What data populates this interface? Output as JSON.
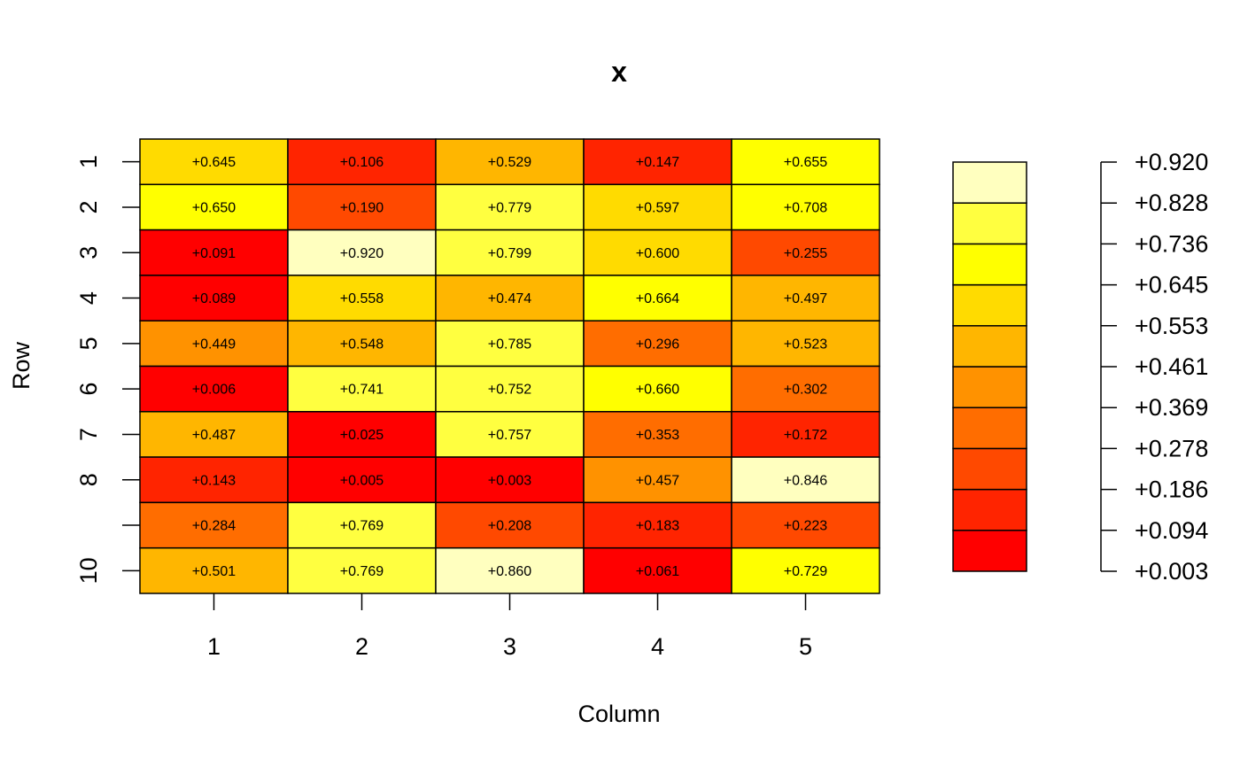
{
  "chart_data": {
    "type": "heatmap",
    "title": "x",
    "xlabel": "Column",
    "ylabel": "Row",
    "x_tick_labels": [
      "1",
      "2",
      "3",
      "4",
      "5"
    ],
    "y_tick_labels": [
      "1",
      "2",
      "3",
      "4",
      "5",
      "6",
      "7",
      "8",
      "",
      "10"
    ],
    "values": [
      [
        0.645,
        0.106,
        0.529,
        0.147,
        0.655
      ],
      [
        0.65,
        0.19,
        0.779,
        0.597,
        0.708
      ],
      [
        0.091,
        0.92,
        0.799,
        0.6,
        0.255
      ],
      [
        0.089,
        0.558,
        0.474,
        0.664,
        0.497
      ],
      [
        0.449,
        0.548,
        0.785,
        0.296,
        0.523
      ],
      [
        0.006,
        0.741,
        0.752,
        0.66,
        0.302
      ],
      [
        0.487,
        0.025,
        0.757,
        0.353,
        0.172
      ],
      [
        0.143,
        0.005,
        0.003,
        0.457,
        0.846
      ],
      [
        0.284,
        0.769,
        0.208,
        0.183,
        0.223
      ],
      [
        0.501,
        0.769,
        0.86,
        0.061,
        0.729
      ]
    ],
    "cell_labels": [
      [
        "+0.645",
        "+0.106",
        "+0.529",
        "+0.147",
        "+0.655"
      ],
      [
        "+0.650",
        "+0.190",
        "+0.779",
        "+0.597",
        "+0.708"
      ],
      [
        "+0.091",
        "+0.920",
        "+0.799",
        "+0.600",
        "+0.255"
      ],
      [
        "+0.089",
        "+0.558",
        "+0.474",
        "+0.664",
        "+0.497"
      ],
      [
        "+0.449",
        "+0.548",
        "+0.785",
        "+0.296",
        "+0.523"
      ],
      [
        "+0.006",
        "+0.741",
        "+0.752",
        "+0.660",
        "+0.302"
      ],
      [
        "+0.487",
        "+0.025",
        "+0.757",
        "+0.353",
        "+0.172"
      ],
      [
        "+0.143",
        "+0.005",
        "+0.003",
        "+0.457",
        "+0.846"
      ],
      [
        "+0.284",
        "+0.769",
        "+0.208",
        "+0.183",
        "+0.223"
      ],
      [
        "+0.501",
        "+0.769",
        "+0.860",
        "+0.061",
        "+0.729"
      ]
    ],
    "color_breaks": [
      0.003,
      0.094,
      0.186,
      0.278,
      0.369,
      0.461,
      0.553,
      0.645,
      0.736,
      0.828,
      0.92
    ],
    "color_scale_labels": [
      "+0.003",
      "+0.094",
      "+0.186",
      "+0.278",
      "+0.369",
      "+0.461",
      "+0.553",
      "+0.645",
      "+0.736",
      "+0.828",
      "+0.920"
    ],
    "palette": [
      "#FF0000",
      "#FF2400",
      "#FF4900",
      "#FF6D00",
      "#FF9200",
      "#FFB600",
      "#FFDB00",
      "#FFFF00",
      "#FFFF40",
      "#FFFFBF"
    ],
    "grid": false,
    "legend": "right"
  }
}
